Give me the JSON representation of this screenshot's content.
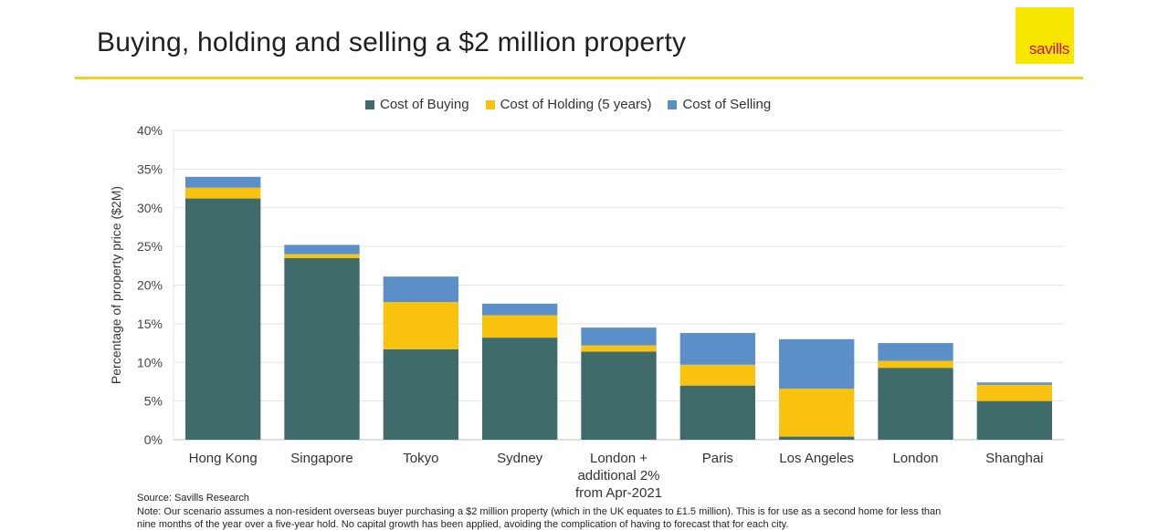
{
  "header": {
    "title": "Buying, holding and selling a $2 million property",
    "logo_text": "savills",
    "logo_color": "#f6e600",
    "accent_color": "#f2d21a"
  },
  "chart_data": {
    "type": "bar",
    "stacked": true,
    "categories": [
      "Hong Kong",
      "Singapore",
      "Tokyo",
      "Sydney",
      "London + additional 2% from Apr-2021",
      "Paris",
      "Los Angeles",
      "London",
      "Shanghai"
    ],
    "category_lines": [
      [
        "Hong Kong"
      ],
      [
        "Singapore"
      ],
      [
        "Tokyo"
      ],
      [
        "Sydney"
      ],
      [
        "London +",
        "additional 2%",
        "from Apr-2021"
      ],
      [
        "Paris"
      ],
      [
        "Los Angeles"
      ],
      [
        "London"
      ],
      [
        "Shanghai"
      ]
    ],
    "series": [
      {
        "name": "Cost of Buying",
        "color": "#3f6b6b",
        "values": [
          31.2,
          23.5,
          11.7,
          13.2,
          11.4,
          7.0,
          0.4,
          9.3,
          5.0
        ]
      },
      {
        "name": "Cost of Holding (5 years)",
        "color": "#f9c20e",
        "values": [
          1.4,
          0.5,
          6.1,
          2.9,
          0.8,
          2.7,
          6.2,
          0.9,
          2.1
        ]
      },
      {
        "name": "Cost of Selling",
        "color": "#5b8fc9",
        "values": [
          1.4,
          1.2,
          3.3,
          1.5,
          2.3,
          4.1,
          6.4,
          2.3,
          0.3
        ]
      }
    ],
    "ylim": [
      0,
      40
    ],
    "yticks": [
      0,
      5,
      10,
      15,
      20,
      25,
      30,
      35,
      40
    ],
    "ytick_labels": [
      "0%",
      "5%",
      "10%",
      "15%",
      "20%",
      "25%",
      "30%",
      "35%",
      "40%"
    ],
    "ylabel": "Percentage of property price ($2M)",
    "xlabel": "",
    "grid": true,
    "legend_position": "top"
  },
  "footer": {
    "source": "Source: Savills Research",
    "note_line1": "Note: Our scenario assumes a non-resident overseas buyer purchasing a $2 million property (which in the UK equates to £1.5 million). This is for use as a second home for less than",
    "note_line2": "nine months of the year over a five-year hold. No capital growth has been applied, avoiding the complication of having to forecast that for each city."
  }
}
